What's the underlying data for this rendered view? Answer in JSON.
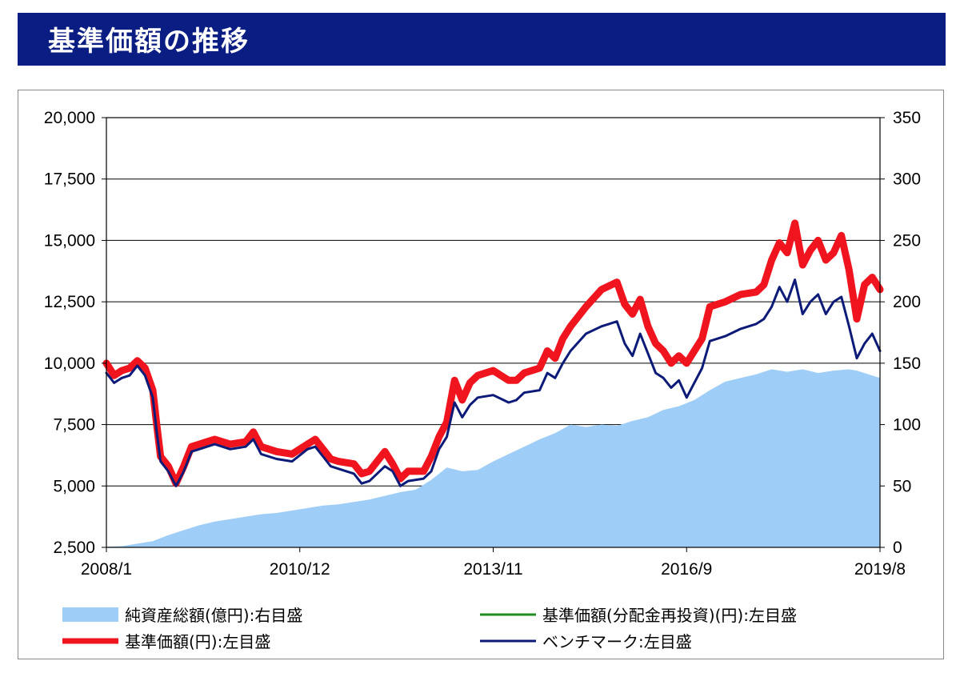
{
  "header": {
    "title": "基準価額の推移"
  },
  "chart_data": {
    "type": "line",
    "x_ticks": [
      "2008/1",
      "2010/12",
      "2013/11",
      "2016/9",
      "2019/8"
    ],
    "y_left": {
      "ticks": [
        "2,500",
        "5,000",
        "7,500",
        "10,000",
        "12,500",
        "15,000",
        "17,500",
        "20,000"
      ],
      "range": [
        2500,
        20000
      ]
    },
    "y_right": {
      "ticks": [
        "0",
        "50",
        "100",
        "150",
        "200",
        "250",
        "300",
        "350"
      ],
      "range": [
        0,
        350
      ]
    },
    "grid": true,
    "legend_position": "bottom",
    "legend": [
      {
        "label": "純資産総額(億円):右目盛",
        "color": "#9ecdf7",
        "style": "area"
      },
      {
        "label": "基準価額(分配金再投資)(円):左目盛",
        "color": "#1e8c1e",
        "style": "line"
      },
      {
        "label": "基準価額(円):左目盛",
        "color": "#f0141e",
        "style": "thick-line"
      },
      {
        "label": "ベンチマーク:左目盛",
        "color": "#0c1a78",
        "style": "line"
      }
    ],
    "series": [
      {
        "name": "純資産総額(億円):右目盛",
        "axis": "right",
        "points": [
          [
            0,
            0.5
          ],
          [
            2,
            1
          ],
          [
            4,
            3
          ],
          [
            6,
            5
          ],
          [
            8,
            10
          ],
          [
            10,
            14
          ],
          [
            12,
            18
          ],
          [
            14,
            21
          ],
          [
            16,
            23
          ],
          [
            18,
            25
          ],
          [
            20,
            27
          ],
          [
            22,
            28
          ],
          [
            24,
            30
          ],
          [
            26,
            32
          ],
          [
            28,
            34
          ],
          [
            30,
            35
          ],
          [
            32,
            37
          ],
          [
            34,
            39
          ],
          [
            36,
            42
          ],
          [
            38,
            45
          ],
          [
            40,
            47
          ],
          [
            42,
            55
          ],
          [
            44,
            65
          ],
          [
            46,
            62
          ],
          [
            48,
            63
          ],
          [
            50,
            70
          ],
          [
            52,
            76
          ],
          [
            54,
            82
          ],
          [
            56,
            88
          ],
          [
            58,
            93
          ],
          [
            60,
            100
          ],
          [
            62,
            98
          ],
          [
            64,
            100
          ],
          [
            66,
            99
          ],
          [
            68,
            103
          ],
          [
            70,
            106
          ],
          [
            72,
            112
          ],
          [
            74,
            115
          ],
          [
            76,
            120
          ],
          [
            78,
            128
          ],
          [
            80,
            135
          ],
          [
            82,
            138
          ],
          [
            84,
            141
          ],
          [
            86,
            145
          ],
          [
            88,
            143
          ],
          [
            90,
            145
          ],
          [
            92,
            142
          ],
          [
            94,
            144
          ],
          [
            96,
            145
          ],
          [
            97,
            144
          ],
          [
            99,
            140
          ],
          [
            100,
            138
          ]
        ]
      },
      {
        "name": "基準価額(円):左目盛",
        "axis": "left",
        "points": [
          [
            0,
            10000
          ],
          [
            1,
            9500
          ],
          [
            2,
            9700
          ],
          [
            3,
            9800
          ],
          [
            4,
            10100
          ],
          [
            5,
            9800
          ],
          [
            6,
            8900
          ],
          [
            6.5,
            7500
          ],
          [
            7,
            6200
          ],
          [
            8,
            5800
          ],
          [
            9,
            5100
          ],
          [
            10,
            5800
          ],
          [
            11,
            6600
          ],
          [
            12,
            6700
          ],
          [
            14,
            6900
          ],
          [
            16,
            6700
          ],
          [
            18,
            6800
          ],
          [
            19,
            7200
          ],
          [
            20,
            6600
          ],
          [
            22,
            6400
          ],
          [
            24,
            6300
          ],
          [
            26,
            6700
          ],
          [
            27,
            6900
          ],
          [
            28,
            6500
          ],
          [
            29,
            6100
          ],
          [
            30,
            6000
          ],
          [
            32,
            5900
          ],
          [
            33,
            5500
          ],
          [
            34,
            5600
          ],
          [
            36,
            6400
          ],
          [
            37,
            5900
          ],
          [
            38,
            5300
          ],
          [
            39,
            5600
          ],
          [
            41,
            5600
          ],
          [
            42,
            6200
          ],
          [
            43,
            7000
          ],
          [
            44,
            7600
          ],
          [
            45,
            9300
          ],
          [
            46,
            8500
          ],
          [
            47,
            9200
          ],
          [
            48,
            9500
          ],
          [
            50,
            9700
          ],
          [
            52,
            9300
          ],
          [
            53,
            9300
          ],
          [
            54,
            9600
          ],
          [
            56,
            9800
          ],
          [
            57,
            10500
          ],
          [
            58,
            10200
          ],
          [
            59,
            11000
          ],
          [
            60,
            11500
          ],
          [
            62,
            12300
          ],
          [
            64,
            13000
          ],
          [
            66,
            13300
          ],
          [
            67,
            12400
          ],
          [
            68,
            12000
          ],
          [
            69,
            12600
          ],
          [
            70,
            11500
          ],
          [
            71,
            10800
          ],
          [
            72,
            10500
          ],
          [
            73,
            10000
          ],
          [
            74,
            10300
          ],
          [
            75,
            10000
          ],
          [
            76,
            10500
          ],
          [
            77,
            11000
          ],
          [
            78,
            12300
          ],
          [
            80,
            12500
          ],
          [
            82,
            12800
          ],
          [
            84,
            12900
          ],
          [
            85,
            13200
          ],
          [
            86,
            14200
          ],
          [
            87,
            14900
          ],
          [
            88,
            14500
          ],
          [
            89,
            15700
          ],
          [
            90,
            14000
          ],
          [
            91,
            14600
          ],
          [
            92,
            15000
          ],
          [
            93,
            14200
          ],
          [
            94,
            14500
          ],
          [
            95,
            15200
          ],
          [
            96,
            13800
          ],
          [
            97,
            11800
          ],
          [
            98,
            13200
          ],
          [
            99,
            13500
          ],
          [
            100,
            13000
          ]
        ]
      },
      {
        "name": "ベンチマーク:左目盛",
        "axis": "left",
        "points": [
          [
            0,
            9600
          ],
          [
            1,
            9200
          ],
          [
            2,
            9400
          ],
          [
            3,
            9500
          ],
          [
            4,
            9900
          ],
          [
            5,
            9500
          ],
          [
            6,
            8600
          ],
          [
            6.5,
            7200
          ],
          [
            7,
            6000
          ],
          [
            8,
            5600
          ],
          [
            9,
            5000
          ],
          [
            10,
            5600
          ],
          [
            11,
            6400
          ],
          [
            12,
            6500
          ],
          [
            14,
            6700
          ],
          [
            16,
            6500
          ],
          [
            18,
            6600
          ],
          [
            19,
            6900
          ],
          [
            20,
            6300
          ],
          [
            22,
            6100
          ],
          [
            24,
            6000
          ],
          [
            26,
            6500
          ],
          [
            27,
            6600
          ],
          [
            28,
            6200
          ],
          [
            29,
            5800
          ],
          [
            30,
            5700
          ],
          [
            32,
            5500
          ],
          [
            33,
            5100
          ],
          [
            34,
            5200
          ],
          [
            36,
            5800
          ],
          [
            37,
            5600
          ],
          [
            38,
            5000
          ],
          [
            39,
            5200
          ],
          [
            41,
            5300
          ],
          [
            42,
            5600
          ],
          [
            43,
            6500
          ],
          [
            44,
            7000
          ],
          [
            45,
            8400
          ],
          [
            46,
            7800
          ],
          [
            47,
            8300
          ],
          [
            48,
            8600
          ],
          [
            50,
            8700
          ],
          [
            52,
            8400
          ],
          [
            53,
            8500
          ],
          [
            54,
            8800
          ],
          [
            56,
            8900
          ],
          [
            57,
            9600
          ],
          [
            58,
            9400
          ],
          [
            59,
            10000
          ],
          [
            60,
            10500
          ],
          [
            62,
            11200
          ],
          [
            64,
            11500
          ],
          [
            66,
            11700
          ],
          [
            67,
            10800
          ],
          [
            68,
            10300
          ],
          [
            69,
            11200
          ],
          [
            70,
            10400
          ],
          [
            71,
            9600
          ],
          [
            72,
            9400
          ],
          [
            73,
            9000
          ],
          [
            74,
            9300
          ],
          [
            75,
            8600
          ],
          [
            76,
            9200
          ],
          [
            77,
            9800
          ],
          [
            78,
            10900
          ],
          [
            80,
            11100
          ],
          [
            82,
            11400
          ],
          [
            84,
            11600
          ],
          [
            85,
            11800
          ],
          [
            86,
            12300
          ],
          [
            87,
            13100
          ],
          [
            88,
            12500
          ],
          [
            89,
            13400
          ],
          [
            90,
            12000
          ],
          [
            91,
            12500
          ],
          [
            92,
            12800
          ],
          [
            93,
            12000
          ],
          [
            94,
            12500
          ],
          [
            95,
            12700
          ],
          [
            96,
            11500
          ],
          [
            97,
            10200
          ],
          [
            98,
            10800
          ],
          [
            99,
            11200
          ],
          [
            100,
            10500
          ]
        ]
      }
    ]
  }
}
